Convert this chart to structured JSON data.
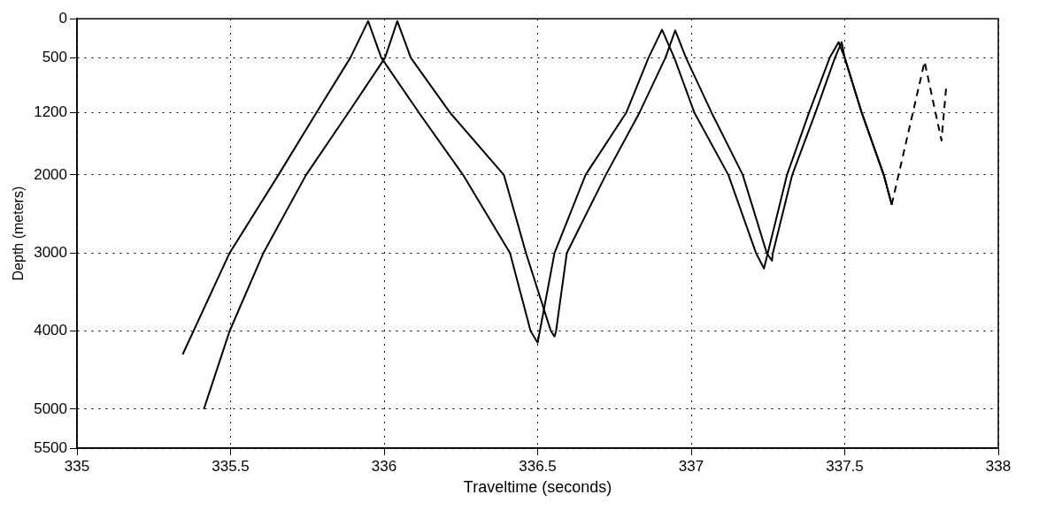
{
  "chart_data": {
    "type": "line",
    "xlabel": "Traveltime (seconds)",
    "ylabel": "Depth (meters)",
    "xlim": [
      335,
      338
    ],
    "xticks": [
      335,
      335.5,
      336,
      336.5,
      337,
      337.5,
      338
    ],
    "ylim": [
      5500,
      0
    ],
    "yticks": [
      0,
      500,
      1200,
      2000,
      3000,
      4000,
      5000,
      5500
    ],
    "grid": true,
    "marker": "none",
    "series": [
      {
        "color": "#000000",
        "line_style": "solid",
        "x": [
          335.344,
          335.497,
          335.656,
          335.78,
          335.89,
          335.948,
          335.991,
          336.113,
          336.257,
          336.41,
          336.477,
          336.5,
          336.555,
          336.656,
          336.789,
          336.861,
          336.905,
          336.945,
          337.01,
          337.121,
          337.211,
          337.237,
          337.312,
          337.384,
          337.451,
          337.48,
          337.5,
          337.555,
          337.627,
          337.653
        ],
        "values": [
          4300,
          3000,
          2000,
          1200,
          500,
          30,
          500,
          1200,
          2000,
          3000,
          4000,
          4150,
          3000,
          2000,
          1200,
          500,
          140,
          500,
          1200,
          2000,
          3000,
          3200,
          2000,
          1200,
          500,
          300,
          500,
          1200,
          2000,
          2380
        ]
      },
      {
        "color": "#000000",
        "line_style": "solid",
        "x": [
          335.413,
          335.497,
          335.607,
          335.746,
          335.884,
          336.003,
          336.043,
          336.087,
          336.214,
          336.39,
          336.462,
          336.543,
          336.555,
          336.56,
          336.595,
          336.722,
          336.832,
          336.916,
          336.948,
          336.983,
          337.066,
          337.168,
          337.246,
          337.263,
          337.266,
          337.329,
          337.405,
          337.468,
          337.49,
          337.5,
          337.555,
          337.627,
          337.653
        ],
        "values": [
          5000,
          4000,
          3000,
          2000,
          1200,
          500,
          30,
          500,
          1200,
          2000,
          3000,
          4000,
          4070,
          4000,
          3000,
          2000,
          1200,
          500,
          150,
          500,
          1200,
          2000,
          3000,
          3100,
          3000,
          2000,
          1200,
          500,
          300,
          500,
          1200,
          2000,
          2380
        ]
      },
      {
        "color": "#000000",
        "line_style": "dashed",
        "x": [
          337.653,
          337.76,
          337.815,
          337.83
        ],
        "values": [
          2380,
          550,
          1560,
          890
        ]
      }
    ]
  }
}
